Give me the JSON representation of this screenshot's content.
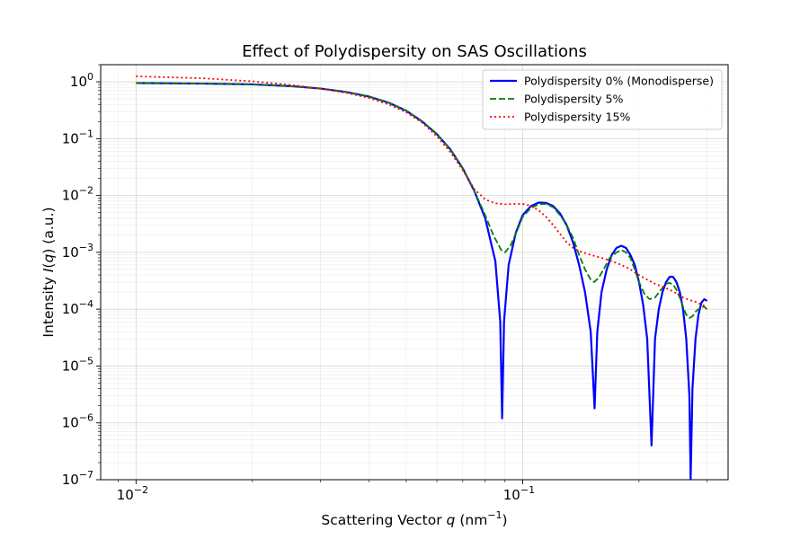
{
  "chart_data": {
    "type": "line",
    "title": "Effect of Polydispersity on SAS Oscillations",
    "xlabel": {
      "prefix": "Scattering Vector ",
      "var": "q",
      "unit_open": " (nm",
      "unit_exp": "−1",
      "unit_close": ")"
    },
    "ylabel": {
      "prefix": "Intensity ",
      "var": "I",
      "paren_open": "(",
      "var2": "q",
      "paren_close": ")",
      "suffix": " (a.u.)"
    },
    "xscale": "log",
    "yscale": "log",
    "xlim": [
      0.0081,
      0.34
    ],
    "ylim": [
      1e-07,
      2
    ],
    "grid": true,
    "legend_position": "top-right",
    "x_ticks": [
      {
        "value": 0.01,
        "base": "10",
        "exp": "−2"
      },
      {
        "value": 0.1,
        "base": "10",
        "exp": "−1"
      }
    ],
    "y_ticks": [
      {
        "value": 1,
        "base": "10",
        "exp": "0"
      },
      {
        "value": 0.1,
        "base": "10",
        "exp": "−1"
      },
      {
        "value": 0.01,
        "base": "10",
        "exp": "−2"
      },
      {
        "value": 0.001,
        "base": "10",
        "exp": "−3"
      },
      {
        "value": 0.0001,
        "base": "10",
        "exp": "−4"
      },
      {
        "value": 1e-05,
        "base": "10",
        "exp": "−5"
      },
      {
        "value": 1e-06,
        "base": "10",
        "exp": "−6"
      },
      {
        "value": 1e-07,
        "base": "10",
        "exp": "−7"
      }
    ],
    "series": [
      {
        "name": "Polydispersity 0% (Monodisperse)",
        "color": "#0000ff",
        "dash": "solid",
        "points": [
          [
            0.01,
            0.95
          ],
          [
            0.015,
            0.93
          ],
          [
            0.02,
            0.9
          ],
          [
            0.025,
            0.84
          ],
          [
            0.03,
            0.76
          ],
          [
            0.035,
            0.66
          ],
          [
            0.04,
            0.55
          ],
          [
            0.045,
            0.43
          ],
          [
            0.05,
            0.31
          ],
          [
            0.055,
            0.2
          ],
          [
            0.06,
            0.12
          ],
          [
            0.065,
            0.065
          ],
          [
            0.07,
            0.03
          ],
          [
            0.075,
            0.012
          ],
          [
            0.08,
            0.004
          ],
          [
            0.085,
            0.0007
          ],
          [
            0.0875,
            6e-05
          ],
          [
            0.0885,
            1.2e-06
          ],
          [
            0.0895,
            6e-05
          ],
          [
            0.092,
            0.0006
          ],
          [
            0.096,
            0.0022
          ],
          [
            0.1,
            0.0045
          ],
          [
            0.105,
            0.0065
          ],
          [
            0.11,
            0.0075
          ],
          [
            0.115,
            0.0074
          ],
          [
            0.12,
            0.0065
          ],
          [
            0.125,
            0.0048
          ],
          [
            0.13,
            0.003
          ],
          [
            0.135,
            0.0015
          ],
          [
            0.14,
            0.0006
          ],
          [
            0.145,
            0.0002
          ],
          [
            0.15,
            4e-05
          ],
          [
            0.1535,
            1.8e-06
          ],
          [
            0.156,
            4e-05
          ],
          [
            0.16,
            0.0002
          ],
          [
            0.165,
            0.0005
          ],
          [
            0.17,
            0.0009
          ],
          [
            0.175,
            0.0012
          ],
          [
            0.18,
            0.0013
          ],
          [
            0.185,
            0.0012
          ],
          [
            0.19,
            0.0009
          ],
          [
            0.195,
            0.0006
          ],
          [
            0.2,
            0.0003
          ],
          [
            0.205,
            0.00012
          ],
          [
            0.21,
            3e-05
          ],
          [
            0.2155,
            4e-07
          ],
          [
            0.22,
            3e-05
          ],
          [
            0.225,
            0.0001
          ],
          [
            0.23,
            0.0002
          ],
          [
            0.235,
            0.0003
          ],
          [
            0.24,
            0.00037
          ],
          [
            0.245,
            0.00037
          ],
          [
            0.25,
            0.0003
          ],
          [
            0.255,
            0.0002
          ],
          [
            0.26,
            0.0001
          ],
          [
            0.265,
            3e-05
          ],
          [
            0.27,
            3e-06
          ],
          [
            0.272,
            1e-07
          ],
          [
            0.275,
            4e-06
          ],
          [
            0.28,
            3e-05
          ],
          [
            0.285,
            8e-05
          ],
          [
            0.29,
            0.00013
          ],
          [
            0.295,
            0.00015
          ],
          [
            0.3,
            0.00014
          ]
        ]
      },
      {
        "name": "Polydispersity 5%",
        "color": "#008000",
        "dash": "dashed",
        "points": [
          [
            0.01,
            0.95
          ],
          [
            0.015,
            0.93
          ],
          [
            0.02,
            0.9
          ],
          [
            0.025,
            0.84
          ],
          [
            0.03,
            0.76
          ],
          [
            0.035,
            0.66
          ],
          [
            0.04,
            0.55
          ],
          [
            0.045,
            0.43
          ],
          [
            0.05,
            0.31
          ],
          [
            0.055,
            0.2
          ],
          [
            0.06,
            0.12
          ],
          [
            0.065,
            0.065
          ],
          [
            0.07,
            0.03
          ],
          [
            0.075,
            0.012
          ],
          [
            0.08,
            0.0045
          ],
          [
            0.084,
            0.002
          ],
          [
            0.088,
            0.0011
          ],
          [
            0.09,
            0.001
          ],
          [
            0.093,
            0.0013
          ],
          [
            0.097,
            0.0025
          ],
          [
            0.1,
            0.0042
          ],
          [
            0.105,
            0.006
          ],
          [
            0.11,
            0.007
          ],
          [
            0.115,
            0.0071
          ],
          [
            0.12,
            0.0062
          ],
          [
            0.125,
            0.0045
          ],
          [
            0.13,
            0.003
          ],
          [
            0.135,
            0.0018
          ],
          [
            0.14,
            0.0009
          ],
          [
            0.145,
            0.0005
          ],
          [
            0.15,
            0.00033
          ],
          [
            0.153,
            0.0003
          ],
          [
            0.157,
            0.00035
          ],
          [
            0.162,
            0.0005
          ],
          [
            0.168,
            0.0008
          ],
          [
            0.175,
            0.001
          ],
          [
            0.18,
            0.0011
          ],
          [
            0.185,
            0.001
          ],
          [
            0.19,
            0.0008
          ],
          [
            0.195,
            0.0005
          ],
          [
            0.2,
            0.0003
          ],
          [
            0.207,
            0.00018
          ],
          [
            0.213,
            0.00015
          ],
          [
            0.22,
            0.00016
          ],
          [
            0.228,
            0.00022
          ],
          [
            0.235,
            0.00028
          ],
          [
            0.24,
            0.00029
          ],
          [
            0.245,
            0.00027
          ],
          [
            0.25,
            0.00022
          ],
          [
            0.255,
            0.00016
          ],
          [
            0.26,
            0.00011
          ],
          [
            0.265,
            8e-05
          ],
          [
            0.27,
            7e-05
          ],
          [
            0.275,
            7.5e-05
          ],
          [
            0.28,
            9e-05
          ],
          [
            0.29,
            0.00011
          ],
          [
            0.295,
            0.00011
          ],
          [
            0.3,
            0.0001
          ]
        ]
      },
      {
        "name": "Polydispersity 15%",
        "color": "#ff0000",
        "dash": "dotted",
        "points": [
          [
            0.01,
            1.25
          ],
          [
            0.015,
            1.15
          ],
          [
            0.02,
            1.02
          ],
          [
            0.025,
            0.88
          ],
          [
            0.03,
            0.76
          ],
          [
            0.035,
            0.64
          ],
          [
            0.04,
            0.52
          ],
          [
            0.045,
            0.4
          ],
          [
            0.05,
            0.29
          ],
          [
            0.055,
            0.19
          ],
          [
            0.06,
            0.11
          ],
          [
            0.065,
            0.058
          ],
          [
            0.07,
            0.028
          ],
          [
            0.075,
            0.013
          ],
          [
            0.08,
            0.0085
          ],
          [
            0.085,
            0.0073
          ],
          [
            0.09,
            0.007
          ],
          [
            0.095,
            0.0071
          ],
          [
            0.1,
            0.0071
          ],
          [
            0.105,
            0.0066
          ],
          [
            0.11,
            0.0055
          ],
          [
            0.115,
            0.0042
          ],
          [
            0.12,
            0.003
          ],
          [
            0.125,
            0.0021
          ],
          [
            0.13,
            0.0015
          ],
          [
            0.135,
            0.0012
          ],
          [
            0.14,
            0.00105
          ],
          [
            0.15,
            0.0009
          ],
          [
            0.16,
            0.0008
          ],
          [
            0.17,
            0.0007
          ],
          [
            0.18,
            0.0006
          ],
          [
            0.19,
            0.0005
          ],
          [
            0.2,
            0.0004
          ],
          [
            0.21,
            0.00033
          ],
          [
            0.22,
            0.00028
          ],
          [
            0.23,
            0.00025
          ],
          [
            0.24,
            0.00022
          ],
          [
            0.25,
            0.00019
          ],
          [
            0.26,
            0.00016
          ],
          [
            0.27,
            0.000145
          ],
          [
            0.28,
            0.000135
          ],
          [
            0.29,
            0.00012
          ],
          [
            0.3,
            0.00011
          ]
        ]
      }
    ]
  }
}
